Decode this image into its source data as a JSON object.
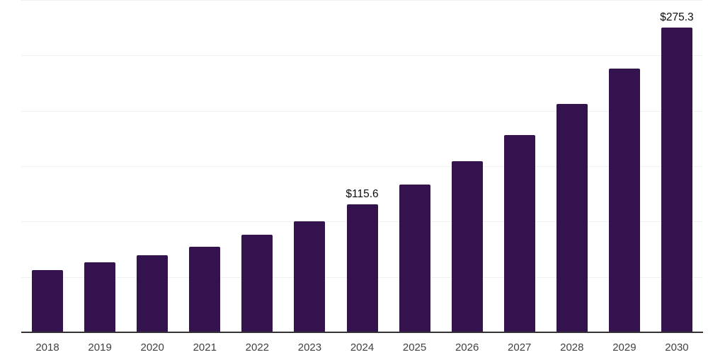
{
  "chart_data": {
    "type": "bar",
    "title": "",
    "xlabel": "",
    "ylabel": "",
    "categories": [
      "2018",
      "2019",
      "2020",
      "2021",
      "2022",
      "2023",
      "2024",
      "2025",
      "2026",
      "2027",
      "2028",
      "2029",
      "2030"
    ],
    "values": [
      56.4,
      63.4,
      69.8,
      77.0,
      88.0,
      100.4,
      115.6,
      133.6,
      154.4,
      178.4,
      206.2,
      238.3,
      275.3
    ],
    "data_labels": {
      "2024": "$115.6",
      "2030": "$275.3"
    },
    "ylim": [
      0,
      300
    ],
    "grid": true,
    "grid_step": 50,
    "y_axis_labels_visible": false,
    "legend_position": "none",
    "colors": {
      "bar": "#33124E",
      "grid_line": "#f0f0f0",
      "axis_line": "#333333",
      "tick_label": "#404040",
      "data_label": "#0d0d0d",
      "background": "#ffffff"
    }
  }
}
